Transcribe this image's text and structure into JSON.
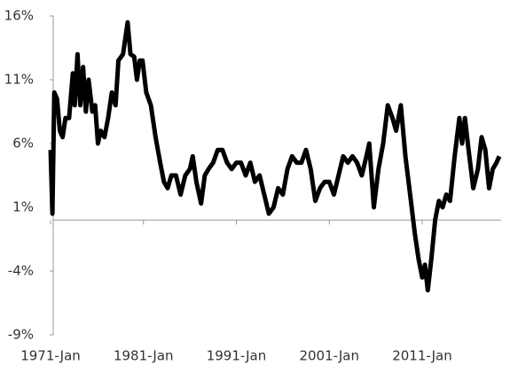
{
  "chart_data": {
    "type": "line",
    "color": "#000000",
    "x": [
      1971.0,
      1971.2,
      1971.4,
      1971.7,
      1972.0,
      1972.3,
      1972.6,
      1973.0,
      1973.4,
      1973.6,
      1973.9,
      1974.2,
      1974.5,
      1974.8,
      1975.1,
      1975.5,
      1975.8,
      1976.1,
      1976.4,
      1976.8,
      1977.2,
      1977.6,
      1978.0,
      1978.3,
      1978.8,
      1979.3,
      1979.6,
      1980.0,
      1980.3,
      1980.6,
      1980.9,
      1981.3,
      1981.8,
      1982.3,
      1982.8,
      1983.2,
      1983.6,
      1984.0,
      1984.5,
      1985.0,
      1985.5,
      1986.0,
      1986.3,
      1986.7,
      1987.2,
      1987.6,
      1988.0,
      1988.5,
      1989.0,
      1989.5,
      1990.0,
      1990.5,
      1991.0,
      1991.5,
      1992.0,
      1992.5,
      1993.0,
      1993.5,
      1994.0,
      1994.5,
      1995.0,
      1995.5,
      1996.0,
      1996.5,
      1997.0,
      1997.5,
      1998.0,
      1998.5,
      1999.0,
      1999.5,
      2000.0,
      2000.5,
      2001.0,
      2001.5,
      2002.0,
      2002.5,
      2003.0,
      2003.5,
      2004.0,
      2004.5,
      2005.0,
      2005.3,
      2005.8,
      2006.3,
      2006.8,
      2007.3,
      2007.8,
      2008.2,
      2008.7,
      2009.2,
      2009.7,
      2010.2,
      2010.6,
      2011.0,
      2011.3,
      2011.6,
      2012.0,
      2012.4,
      2012.8,
      2013.2,
      2013.6,
      2014.0,
      2014.5,
      2015.0,
      2015.3,
      2015.6,
      2016.0,
      2016.5,
      2017.0,
      2017.4,
      2017.8,
      2018.2,
      2018.6,
      2019.0,
      2019.3
    ],
    "values": [
      5.5,
      0.5,
      10,
      9.5,
      7,
      6.5,
      8,
      8,
      11.5,
      9,
      13,
      9,
      12,
      8.5,
      11,
      8.5,
      9,
      6,
      7,
      6.5,
      8,
      10,
      9,
      12.5,
      13,
      15.5,
      13,
      12.8,
      11,
      12.5,
      12.5,
      10,
      9,
      6.5,
      4.5,
      3,
      2.5,
      3.5,
      3.5,
      2,
      3.5,
      4,
      5,
      3,
      1.3,
      3.5,
      4,
      4.5,
      5.5,
      5.5,
      4.5,
      4,
      4.5,
      4.5,
      3.5,
      4.5,
      3,
      3.5,
      2,
      0.5,
      1,
      2.5,
      2,
      4,
      5,
      4.5,
      4.5,
      5.5,
      4,
      1.5,
      2.5,
      3,
      3,
      2,
      3.5,
      5,
      4.5,
      5,
      4.5,
      3.5,
      5,
      6,
      1,
      4,
      6,
      9,
      8,
      7,
      9,
      5,
      2,
      -1,
      -3,
      -4.5,
      -3.5,
      -5.5,
      -3,
      0,
      1.5,
      1,
      2,
      1.5,
      5,
      8,
      6,
      8,
      5.5,
      2.5,
      4,
      6.5,
      5.5,
      2.5,
      4,
      4.5,
      5
    ],
    "xlim": [
      1971,
      2019.5
    ],
    "xticks": [
      {
        "value": 1971,
        "label": "1971-Jan"
      },
      {
        "value": 1981,
        "label": "1981-Jan"
      },
      {
        "value": 1991,
        "label": "1991-Jan"
      },
      {
        "value": 2001,
        "label": "2001-Jan"
      },
      {
        "value": 2011,
        "label": "2011-Jan"
      }
    ],
    "ylim": [
      -9,
      16
    ],
    "yticks": [
      {
        "value": -9,
        "label": "-9%"
      },
      {
        "value": -4,
        "label": "-4%"
      },
      {
        "value": 1,
        "label": "1%"
      },
      {
        "value": 6,
        "label": "6%"
      },
      {
        "value": 11,
        "label": "11%"
      },
      {
        "value": 16,
        "label": "16%"
      }
    ]
  }
}
